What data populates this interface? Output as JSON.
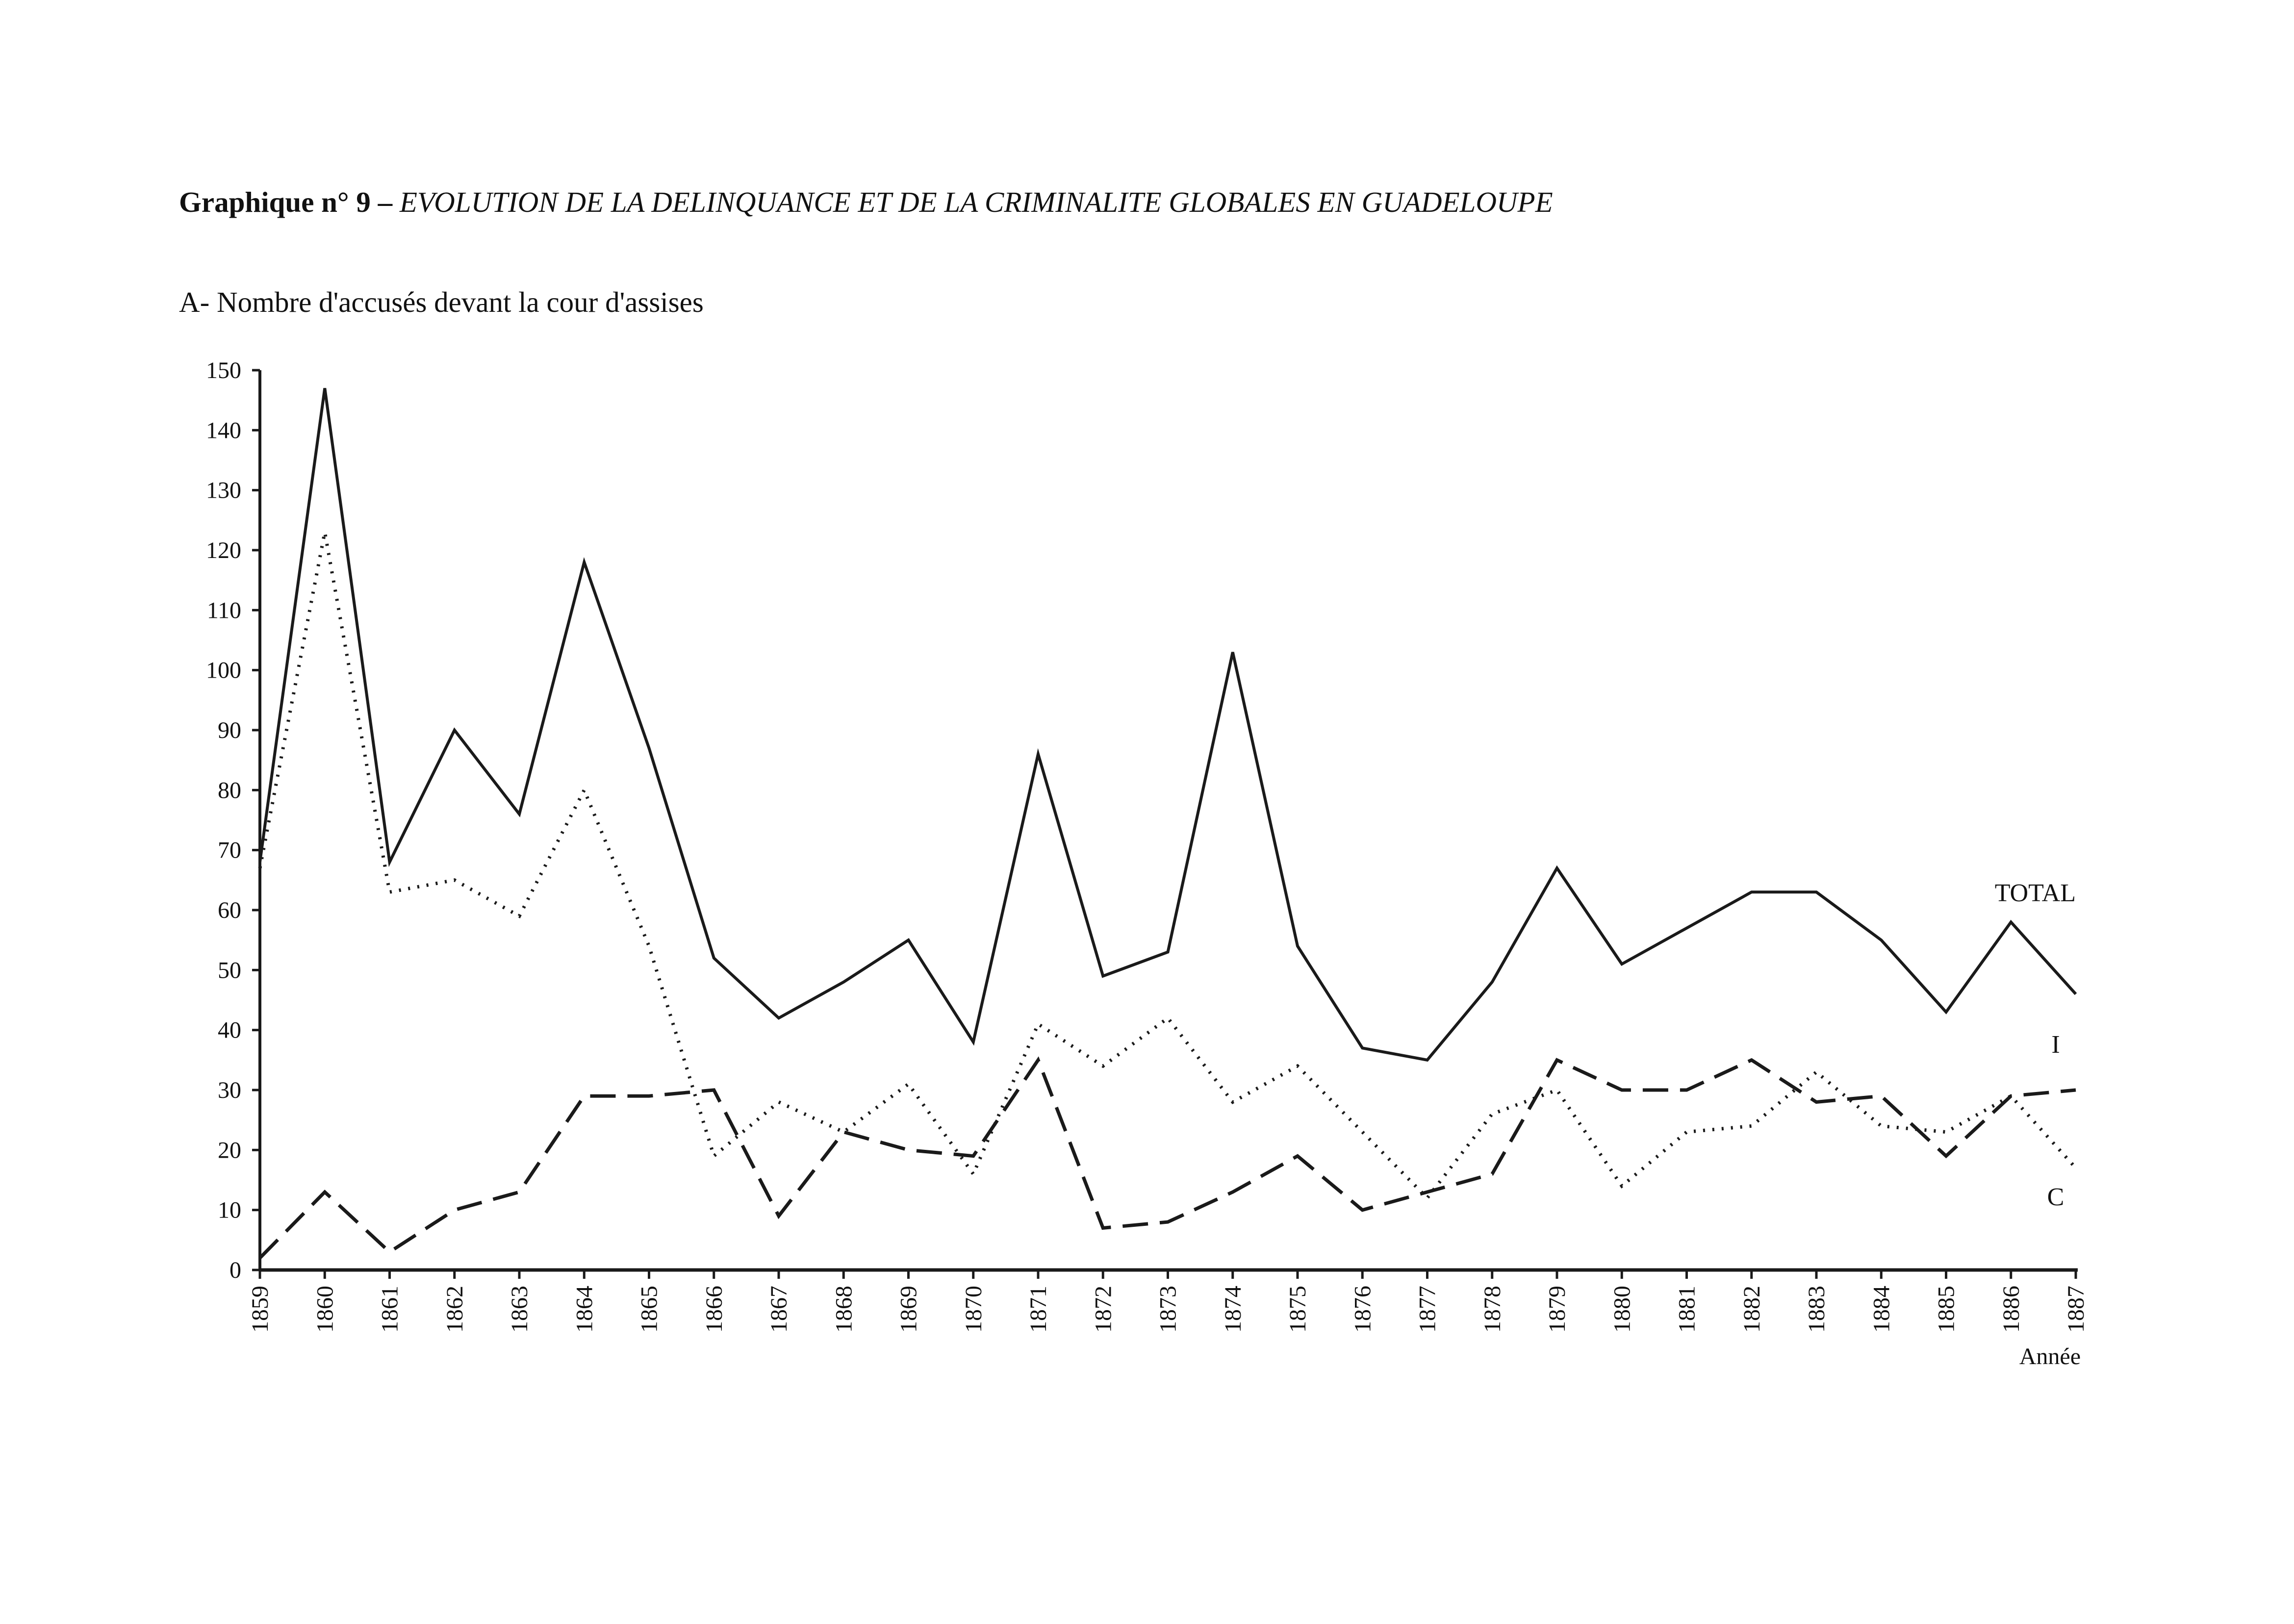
{
  "heading": {
    "prefix": "Graphique n° 9 – ",
    "title": "EVOLUTION DE LA DELINQUANCE ET DE LA CRIMINALITE GLOBALES EN GUADELOUPE"
  },
  "chart_data": {
    "type": "line",
    "title": "A- Nombre d'accusés devant la cour d'assises",
    "xlabel": "Année",
    "ylabel": "",
    "ylim": [
      0,
      150
    ],
    "yticks": [
      0,
      10,
      20,
      30,
      40,
      50,
      60,
      70,
      80,
      90,
      100,
      110,
      120,
      130,
      140,
      150
    ],
    "grid": false,
    "categories": [
      "1859",
      "1860",
      "1861",
      "1862",
      "1863",
      "1864",
      "1865",
      "1866",
      "1867",
      "1868",
      "1869",
      "1870",
      "1871",
      "1872",
      "1873",
      "1874",
      "1875",
      "1876",
      "1877",
      "1878",
      "1879",
      "1880",
      "1881",
      "1882",
      "1883",
      "1884",
      "1885",
      "1886",
      "1887"
    ],
    "series": [
      {
        "name": "TOTAL",
        "style": "solid",
        "values": [
          68,
          147,
          68,
          90,
          76,
          118,
          87,
          52,
          42,
          48,
          55,
          38,
          86,
          49,
          53,
          103,
          54,
          37,
          35,
          48,
          67,
          51,
          57,
          63,
          63,
          55,
          43,
          58,
          46
        ]
      },
      {
        "name": "I",
        "style": "dotted",
        "values": [
          67,
          123,
          63,
          65,
          59,
          80,
          54,
          19,
          28,
          23,
          31,
          16,
          41,
          34,
          42,
          28,
          34,
          23,
          12,
          26,
          30,
          14,
          23,
          24,
          33,
          24,
          23,
          29,
          17
        ]
      },
      {
        "name": "C",
        "style": "dashed",
        "values": [
          2,
          13,
          3,
          10,
          13,
          29,
          29,
          30,
          9,
          23,
          20,
          19,
          35,
          7,
          8,
          13,
          19,
          10,
          13,
          16,
          35,
          30,
          30,
          35,
          28,
          29,
          19,
          29,
          30
        ]
      }
    ],
    "colors": {
      "line": "#1a1a1a",
      "background": "#ffffff"
    }
  }
}
